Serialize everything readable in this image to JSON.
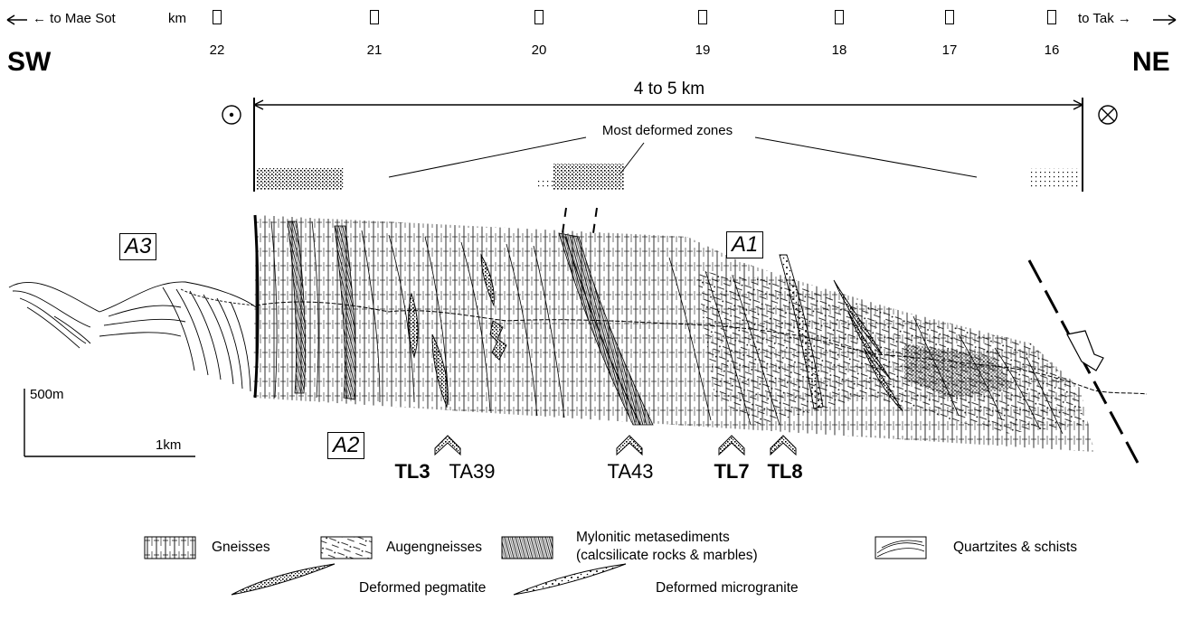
{
  "header": {
    "left_direction": "← to Mae Sot",
    "right_direction": "to Tak →",
    "km_label": "km",
    "km_markers": [
      "22",
      "21",
      "20",
      "19",
      "18",
      "17",
      "16"
    ],
    "sw": "SW",
    "ne": "NE"
  },
  "section": {
    "width_label": "4 to 5 km",
    "zones_label": "Most deformed zones",
    "units": [
      "A3",
      "A1",
      "A2"
    ],
    "scale_vertical": "500m",
    "scale_horizontal": "1km",
    "samples": [
      "TL3",
      "TA39",
      "TA43",
      "TL7",
      "TL8"
    ]
  },
  "legend": {
    "gneisses": "Gneisses",
    "augengneisses": "Augengneisses",
    "mylonitic_1": "Mylonitic metasediments",
    "mylonitic_2": "(calcsilicate rocks & marbles)",
    "quartzites": "Quartzites & schists",
    "pegmatite": "Deformed pegmatite",
    "microgranite": "Deformed microgranite"
  }
}
